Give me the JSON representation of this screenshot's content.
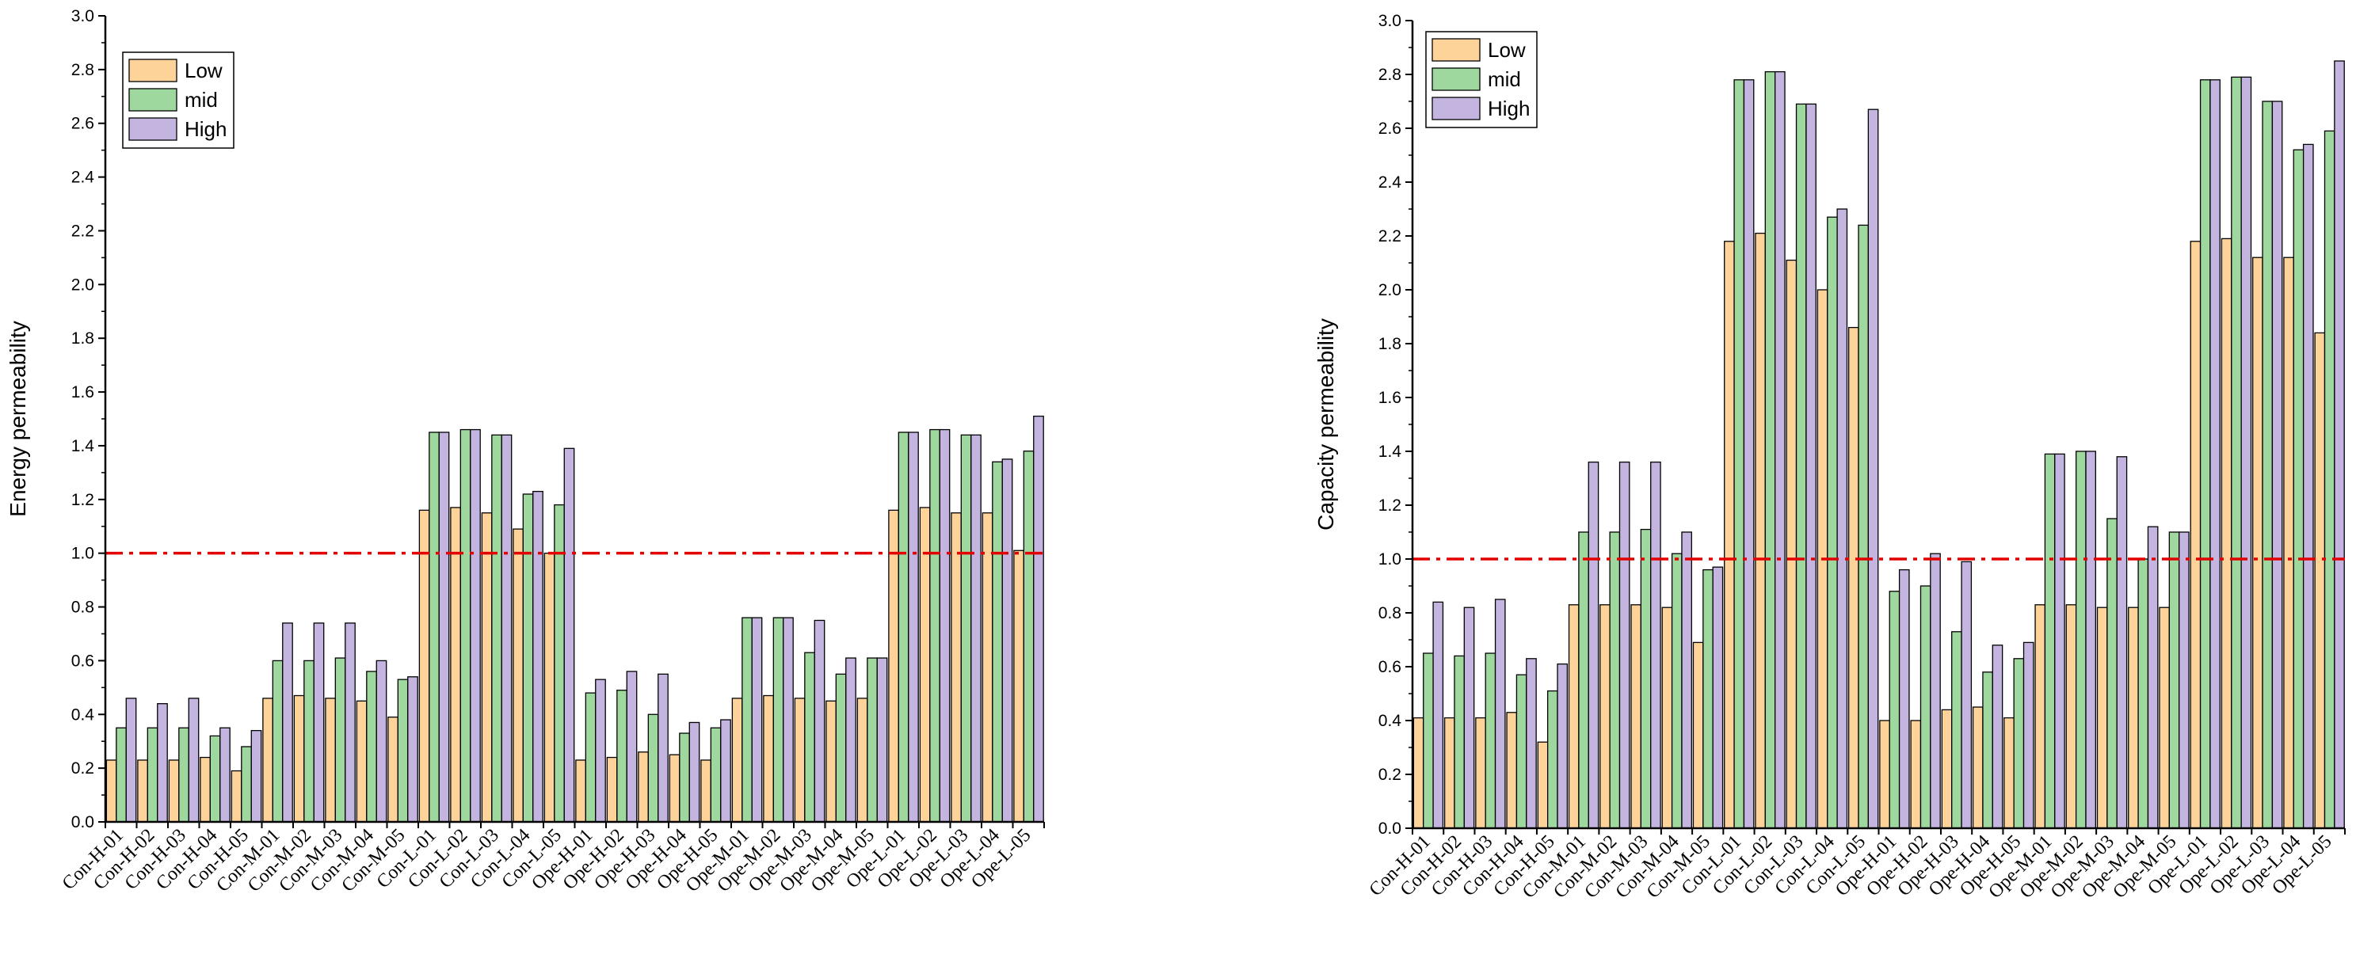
{
  "chart_data": [
    {
      "type": "bar",
      "title": "",
      "xlabel": "",
      "ylabel": "Energy permeability",
      "ylim": [
        0,
        3.0
      ],
      "yticks": [
        "0.0",
        "0.2",
        "0.4",
        "0.6",
        "0.8",
        "1.0",
        "1.2",
        "1.4",
        "1.6",
        "1.8",
        "2.0",
        "2.2",
        "2.4",
        "2.6",
        "2.8",
        "3.0"
      ],
      "reference_line": 1.0,
      "legend_position": "top-left",
      "categories": [
        "Con-H-01",
        "Con-H-02",
        "Con-H-03",
        "Con-H-04",
        "Con-H-05",
        "Con-M-01",
        "Con-M-02",
        "Con-M-03",
        "Con-M-04",
        "Con-M-05",
        "Con-L-01",
        "Con-L-02",
        "Con-L-03",
        "Con-L-04",
        "Con-L-05",
        "Ope-H-01",
        "Ope-H-02",
        "Ope-H-03",
        "Ope-H-04",
        "Ope-H-05",
        "Ope-M-01",
        "Ope-M-02",
        "Ope-M-03",
        "Ope-M-04",
        "Ope-M-05",
        "Ope-L-01",
        "Ope-L-02",
        "Ope-L-03",
        "Ope-L-04",
        "Ope-L-05"
      ],
      "series": [
        {
          "name": "Low",
          "color": "#fdd39a",
          "values": [
            0.23,
            0.23,
            0.23,
            0.24,
            0.19,
            0.46,
            0.47,
            0.46,
            0.45,
            0.39,
            1.16,
            1.17,
            1.15,
            1.09,
            1.0,
            0.23,
            0.24,
            0.26,
            0.25,
            0.23,
            0.46,
            0.47,
            0.46,
            0.45,
            0.46,
            1.16,
            1.17,
            1.15,
            1.15,
            1.01
          ]
        },
        {
          "name": "mid",
          "color": "#9fd89f",
          "values": [
            0.35,
            0.35,
            0.35,
            0.32,
            0.28,
            0.6,
            0.6,
            0.61,
            0.56,
            0.53,
            1.45,
            1.46,
            1.44,
            1.22,
            1.18,
            0.48,
            0.49,
            0.4,
            0.33,
            0.35,
            0.76,
            0.76,
            0.63,
            0.55,
            0.61,
            1.45,
            1.46,
            1.44,
            1.34,
            1.38
          ]
        },
        {
          "name": "High",
          "color": "#c4b5e0",
          "values": [
            0.46,
            0.44,
            0.46,
            0.35,
            0.34,
            0.74,
            0.74,
            0.74,
            0.6,
            0.54,
            1.45,
            1.46,
            1.44,
            1.23,
            1.39,
            0.53,
            0.56,
            0.55,
            0.37,
            0.38,
            0.76,
            0.76,
            0.75,
            0.61,
            0.61,
            1.45,
            1.46,
            1.44,
            1.35,
            1.51
          ]
        }
      ]
    },
    {
      "type": "bar",
      "title": "",
      "xlabel": "",
      "ylabel": "Capacity permeability",
      "ylim": [
        0,
        3.0
      ],
      "yticks": [
        "0.0",
        "0.2",
        "0.4",
        "0.6",
        "0.8",
        "1.0",
        "1.2",
        "1.4",
        "1.6",
        "1.8",
        "2.0",
        "2.2",
        "2.4",
        "2.6",
        "2.8",
        "3.0"
      ],
      "reference_line": 1.0,
      "legend_position": "top-left",
      "categories": [
        "Con-H-01",
        "Con-H-02",
        "Con-H-03",
        "Con-H-04",
        "Con-H-05",
        "Con-M-01",
        "Con-M-02",
        "Con-M-03",
        "Con-M-04",
        "Con-M-05",
        "Con-L-01",
        "Con-L-02",
        "Con-L-03",
        "Con-L-04",
        "Con-L-05",
        "Ope-H-01",
        "Ope-H-02",
        "Ope-H-03",
        "Ope-H-04",
        "Ope-H-05",
        "Ope-M-01",
        "Ope-M-02",
        "Ope-M-03",
        "Ope-M-04",
        "Ope-M-05",
        "Ope-L-01",
        "Ope-L-02",
        "Ope-L-03",
        "Ope-L-04",
        "Ope-L-05"
      ],
      "series": [
        {
          "name": "Low",
          "color": "#fdd39a",
          "values": [
            0.41,
            0.41,
            0.41,
            0.43,
            0.32,
            0.83,
            0.83,
            0.83,
            0.82,
            0.69,
            2.18,
            2.21,
            2.11,
            2.0,
            1.86,
            0.4,
            0.4,
            0.44,
            0.45,
            0.41,
            0.83,
            0.83,
            0.82,
            0.82,
            0.82,
            2.18,
            2.19,
            2.12,
            2.12,
            1.84
          ]
        },
        {
          "name": "mid",
          "color": "#9fd89f",
          "values": [
            0.65,
            0.64,
            0.65,
            0.57,
            0.51,
            1.1,
            1.1,
            1.11,
            1.02,
            0.96,
            2.78,
            2.81,
            2.69,
            2.27,
            2.24,
            0.88,
            0.9,
            0.73,
            0.58,
            0.63,
            1.39,
            1.4,
            1.15,
            1.0,
            1.1,
            2.78,
            2.79,
            2.7,
            2.52,
            2.59
          ]
        },
        {
          "name": "High",
          "color": "#c4b5e0",
          "values": [
            0.84,
            0.82,
            0.85,
            0.63,
            0.61,
            1.36,
            1.36,
            1.36,
            1.1,
            0.97,
            2.78,
            2.81,
            2.69,
            2.3,
            2.67,
            0.96,
            1.02,
            0.99,
            0.68,
            0.69,
            1.39,
            1.4,
            1.38,
            1.12,
            1.1,
            2.78,
            2.79,
            2.7,
            2.54,
            2.85
          ]
        }
      ]
    }
  ]
}
